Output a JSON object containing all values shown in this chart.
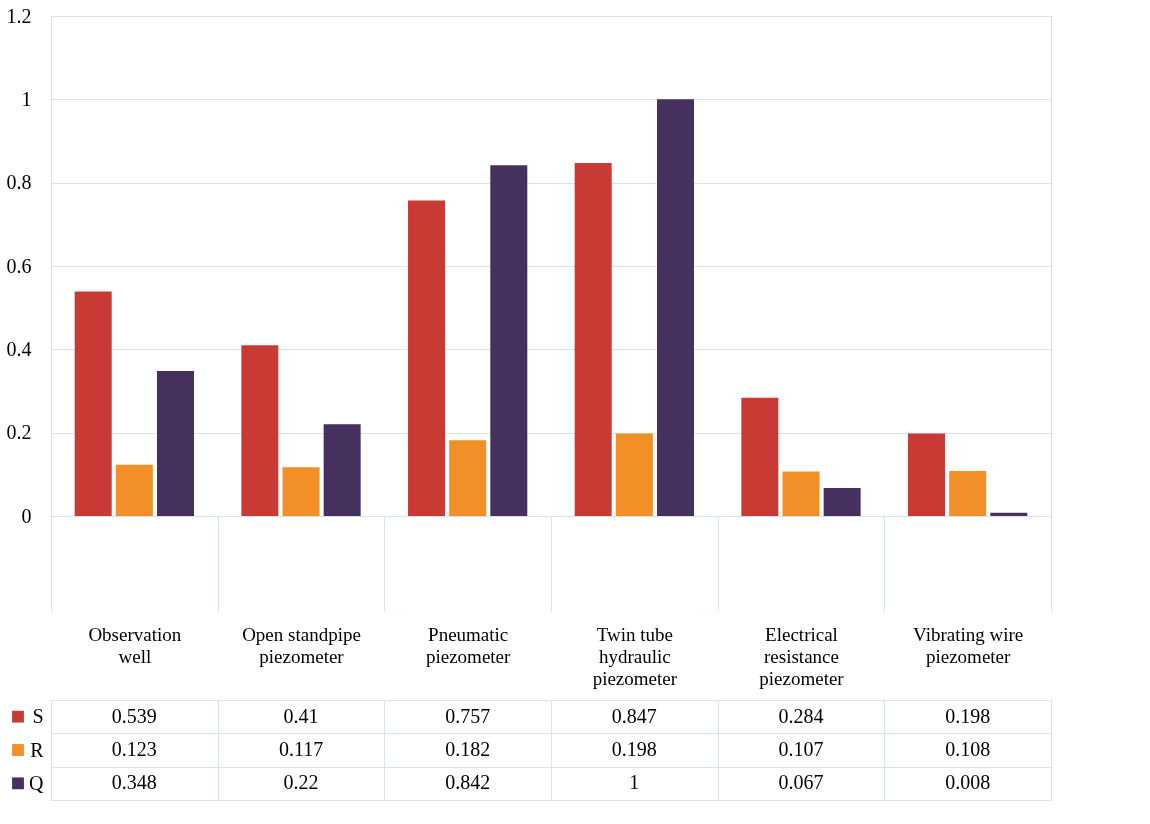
{
  "chart_data": {
    "type": "bar",
    "categories": [
      "Observation well",
      "Open standpipe piezometer",
      "Pneumatic piezometer",
      "Twin tube hydraulic piezometer",
      "Electrical resistance piezometer",
      "Vibrating wire piezometer"
    ],
    "series": [
      {
        "name": "S",
        "color": "#c93a35",
        "values": [
          0.539,
          0.41,
          0.757,
          0.847,
          0.284,
          0.198
        ]
      },
      {
        "name": "R",
        "color": "#f28f26",
        "values": [
          0.123,
          0.117,
          0.182,
          0.198,
          0.107,
          0.108
        ]
      },
      {
        "name": "Q",
        "color": "#45305f",
        "values": [
          0.348,
          0.22,
          0.842,
          1,
          0.067,
          0.008
        ]
      }
    ],
    "ylim": [
      0,
      1.2
    ],
    "yticks": [
      0,
      0.2,
      0.4,
      0.6,
      0.8,
      1,
      1.2
    ],
    "grid": "y",
    "legend": "bottom",
    "data_labels": true
  }
}
